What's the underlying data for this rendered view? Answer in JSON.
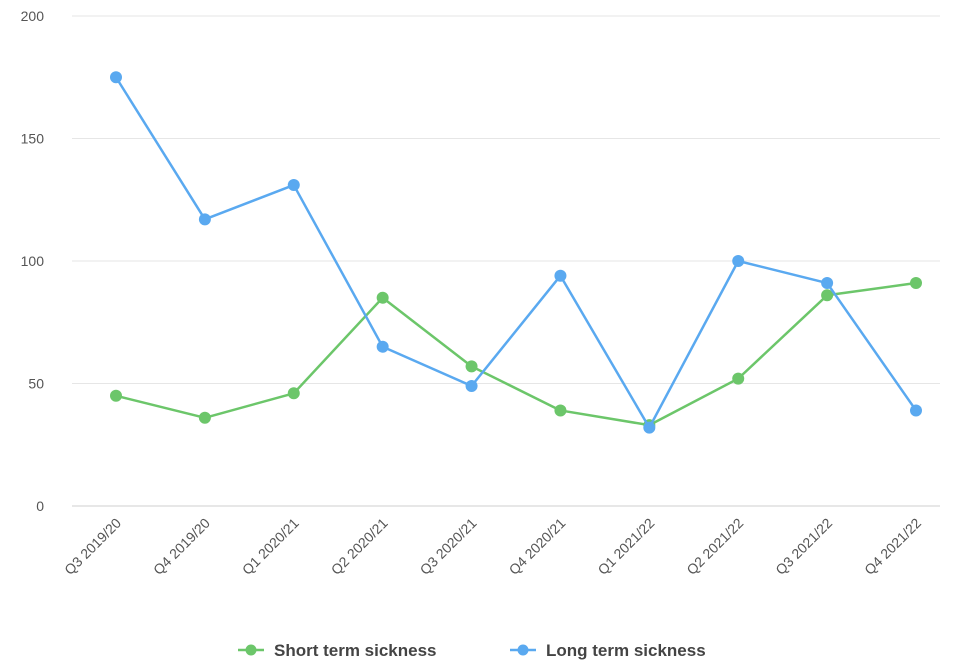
{
  "chart_data": {
    "type": "line",
    "title": "",
    "xlabel": "",
    "ylabel": "",
    "categories": [
      "Q3 2019/20",
      "Q4 2019/20",
      "Q1 2020/21",
      "Q2 2020/21",
      "Q3 2020/21",
      "Q4 2020/21",
      "Q1 2021/22",
      "Q2 2021/22",
      "Q3 2021/22",
      "Q4 2021/22"
    ],
    "ylim": [
      0,
      200
    ],
    "yticks": [
      0,
      50,
      100,
      150,
      200
    ],
    "grid": true,
    "legend_position": "bottom",
    "series": [
      {
        "name": "Short term sickness",
        "color": "#6cc66a",
        "values": [
          45,
          36,
          46,
          85,
          57,
          39,
          33,
          52,
          86,
          91
        ]
      },
      {
        "name": "Long term sickness",
        "color": "#5aa9f0",
        "values": [
          175,
          117,
          131,
          65,
          49,
          94,
          32,
          100,
          91,
          39
        ]
      }
    ]
  }
}
